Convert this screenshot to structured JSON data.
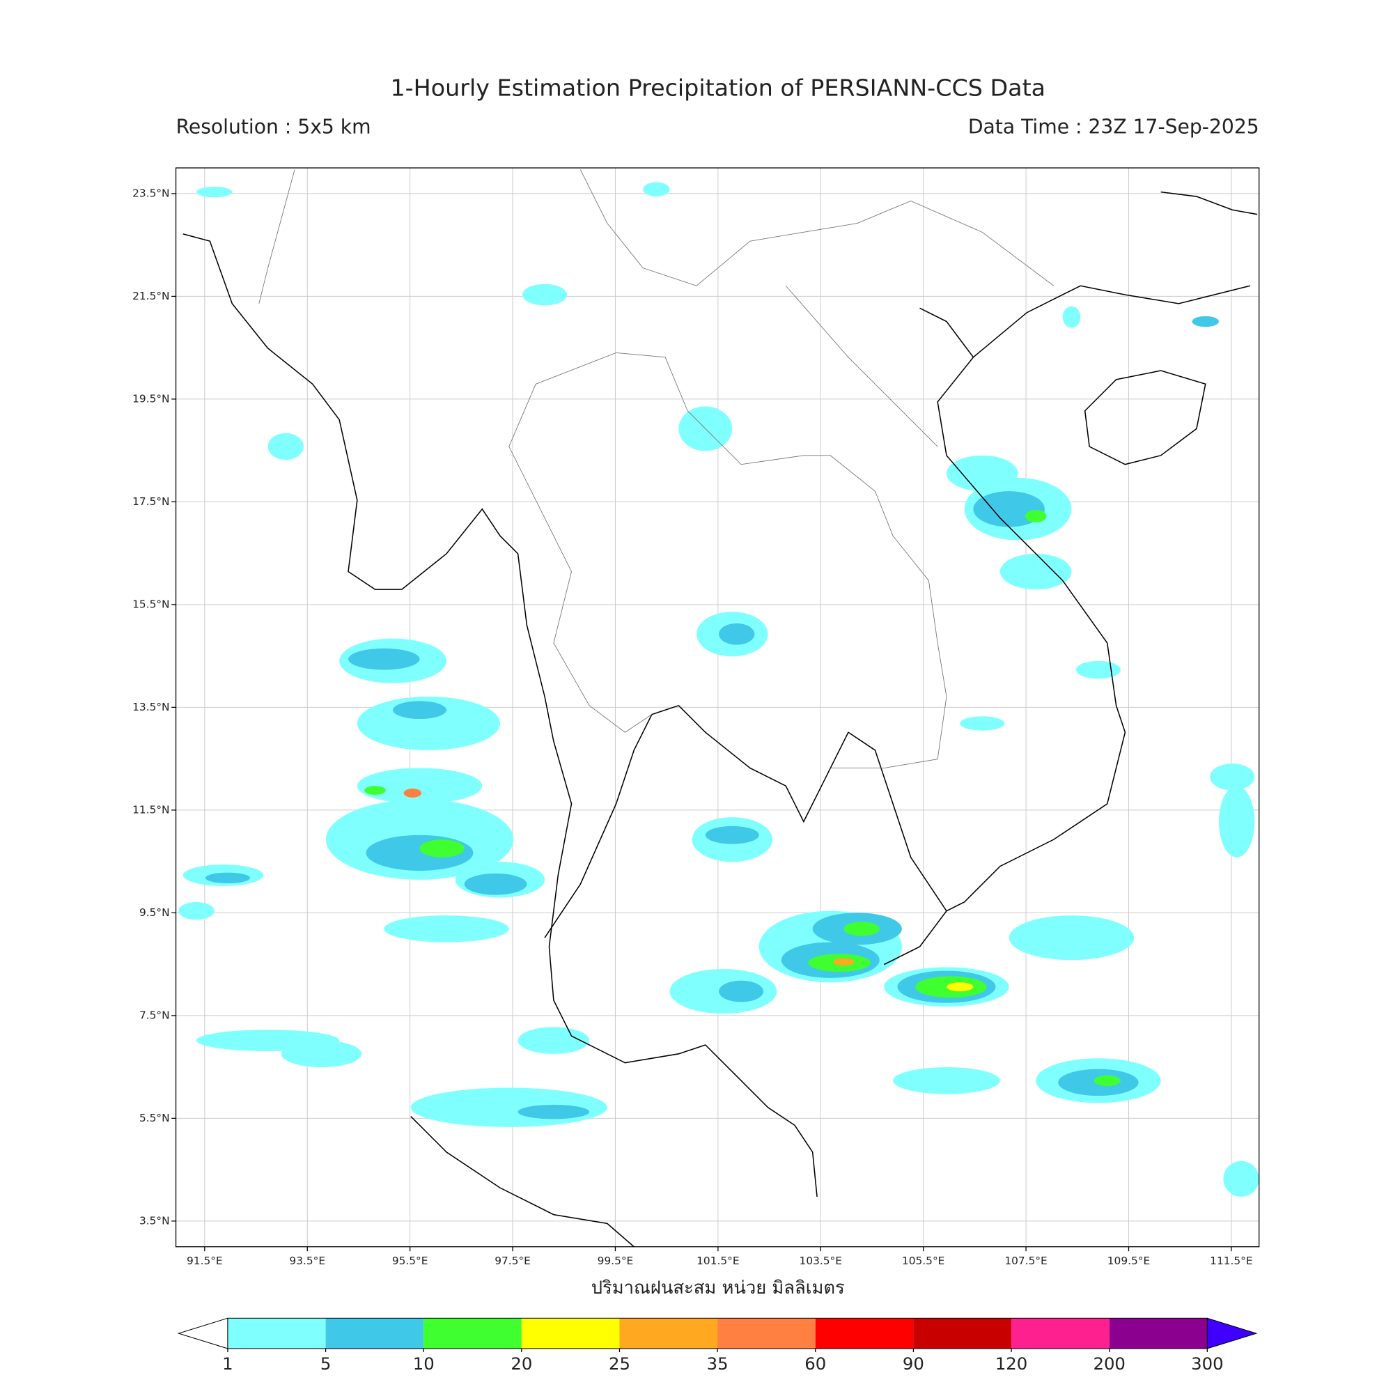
{
  "header": {
    "title": "1-Hourly Estimation Precipitation of PERSIANN-CCS Data",
    "resolution": "Resolution : 5x5 km",
    "data_time": "Data Time : 23Z 17-Sep-2025"
  },
  "map": {
    "xlim": [
      90.94,
      112.04
    ],
    "ylim": [
      3.0,
      24.0
    ],
    "grid": true,
    "xticks": [
      {
        "value": 91.5,
        "label": "91.5°E"
      },
      {
        "value": 93.5,
        "label": "93.5°E"
      },
      {
        "value": 95.5,
        "label": "95.5°E"
      },
      {
        "value": 97.5,
        "label": "97.5°E"
      },
      {
        "value": 99.5,
        "label": "99.5°E"
      },
      {
        "value": 101.5,
        "label": "101.5°E"
      },
      {
        "value": 103.5,
        "label": "103.5°E"
      },
      {
        "value": 105.5,
        "label": "105.5°E"
      },
      {
        "value": 107.5,
        "label": "107.5°E"
      },
      {
        "value": 109.5,
        "label": "109.5°E"
      },
      {
        "value": 111.5,
        "label": "111.5°E"
      }
    ],
    "yticks": [
      {
        "value": 3.5,
        "label": "3.5°N"
      },
      {
        "value": 5.5,
        "label": "5.5°N"
      },
      {
        "value": 7.5,
        "label": "7.5°N"
      },
      {
        "value": 9.5,
        "label": "9.5°N"
      },
      {
        "value": 11.5,
        "label": "11.5°N"
      },
      {
        "value": 13.5,
        "label": "13.5°N"
      },
      {
        "value": 15.5,
        "label": "15.5°N"
      },
      {
        "value": 17.5,
        "label": "17.5°N"
      },
      {
        "value": 19.5,
        "label": "19.5°N"
      },
      {
        "value": 21.5,
        "label": "21.5°N"
      },
      {
        "value": 23.5,
        "label": "23.5°N"
      }
    ],
    "xlabel": "ปริมาณฝนสะสม หน่วย มิลลิเมตร"
  },
  "colorbar": {
    "levels": [
      1,
      5,
      10,
      20,
      25,
      35,
      60,
      90,
      120,
      200,
      300
    ],
    "colors": [
      "#80ffff",
      "#40c8e8",
      "#40ff30",
      "#ffff00",
      "#ffa820",
      "#ff8040",
      "#ff0000",
      "#c80000",
      "#ff2090",
      "#8c0090"
    ],
    "under_color": "#ffffff",
    "over_color": "#3f00ff"
  }
}
